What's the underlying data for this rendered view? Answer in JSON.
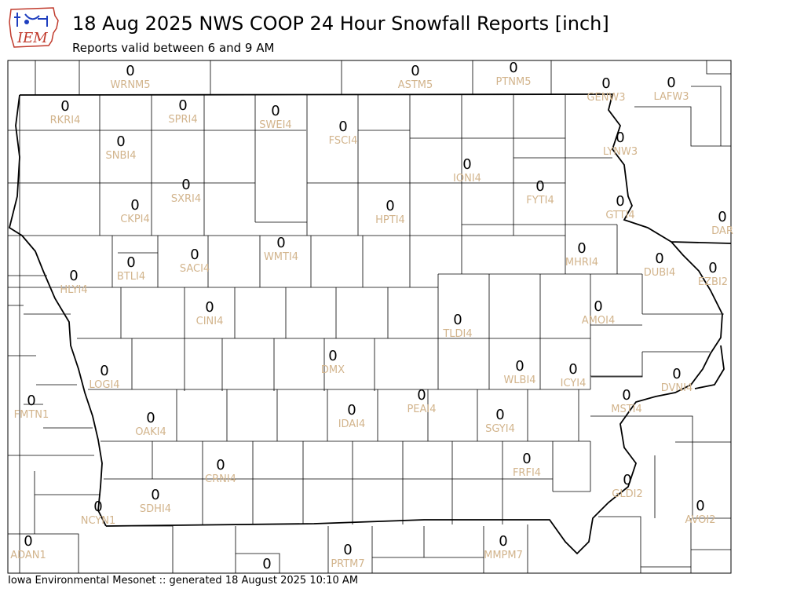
{
  "header": {
    "logo_text": "IEM",
    "title": "18 Aug 2025 NWS COOP 24 Hour Snowfall Reports [inch]",
    "subtitle": "Reports valid between 6 and 9 AM"
  },
  "footer": {
    "text": "Iowa Environmental Mesonet :: generated 18 August 2025 10:10 AM"
  },
  "colors": {
    "station_label": "#d2b48c",
    "value": "#000000",
    "county_line": "#000000"
  },
  "stations": [
    {
      "id": "WRNM5",
      "value": "0"
    },
    {
      "id": "ASTM5",
      "value": "0"
    },
    {
      "id": "PTNM5",
      "value": "0"
    },
    {
      "id": "GENW3",
      "value": "0"
    },
    {
      "id": "LAFW3",
      "value": "0"
    },
    {
      "id": "RKRI4",
      "value": "0"
    },
    {
      "id": "SPRI4",
      "value": "0"
    },
    {
      "id": "SWEI4",
      "value": "0"
    },
    {
      "id": "FSCI4",
      "value": "0"
    },
    {
      "id": "SNBI4",
      "value": "0"
    },
    {
      "id": "LYNW3",
      "value": "0"
    },
    {
      "id": "IONI4",
      "value": "0"
    },
    {
      "id": "SXRI4",
      "value": "0"
    },
    {
      "id": "FYTI4",
      "value": "0"
    },
    {
      "id": "CKPI4",
      "value": "0"
    },
    {
      "id": "HPTI4",
      "value": "0"
    },
    {
      "id": "GTTI4",
      "value": "0"
    },
    {
      "id": "DAR",
      "value": "0"
    },
    {
      "id": "WMTI4",
      "value": "0"
    },
    {
      "id": "SACI4",
      "value": "0"
    },
    {
      "id": "MHRI4",
      "value": "0"
    },
    {
      "id": "DUBI4",
      "value": "0"
    },
    {
      "id": "EZBI2",
      "value": "0"
    },
    {
      "id": "BTLI4",
      "value": "0"
    },
    {
      "id": "HLYI4",
      "value": "0"
    },
    {
      "id": "CINI4",
      "value": "0"
    },
    {
      "id": "AMOI4",
      "value": "0"
    },
    {
      "id": "TLDI4",
      "value": "0"
    },
    {
      "id": "DMX",
      "value": "0"
    },
    {
      "id": "LOGI4",
      "value": "0"
    },
    {
      "id": "WLBI4",
      "value": "0"
    },
    {
      "id": "ICYI4",
      "value": "0"
    },
    {
      "id": "DVNI4",
      "value": "0"
    },
    {
      "id": "FMTN1",
      "value": "0"
    },
    {
      "id": "PEAI4",
      "value": "0"
    },
    {
      "id": "MSTI4",
      "value": "0"
    },
    {
      "id": "IDAI4",
      "value": "0"
    },
    {
      "id": "OAKI4",
      "value": "0"
    },
    {
      "id": "SGYI4",
      "value": "0"
    },
    {
      "id": "FRFI4",
      "value": "0"
    },
    {
      "id": "CRNI4",
      "value": "0"
    },
    {
      "id": "GLDI2",
      "value": "0"
    },
    {
      "id": "SDHI4",
      "value": "0"
    },
    {
      "id": "NCYN1",
      "value": "0"
    },
    {
      "id": "AVOI2",
      "value": "0"
    },
    {
      "id": "ADAN1",
      "value": "0"
    },
    {
      "id": "MMPM7",
      "value": "0"
    },
    {
      "id": "PRTM7",
      "value": "0"
    },
    {
      "id": "",
      "value": "0"
    }
  ]
}
